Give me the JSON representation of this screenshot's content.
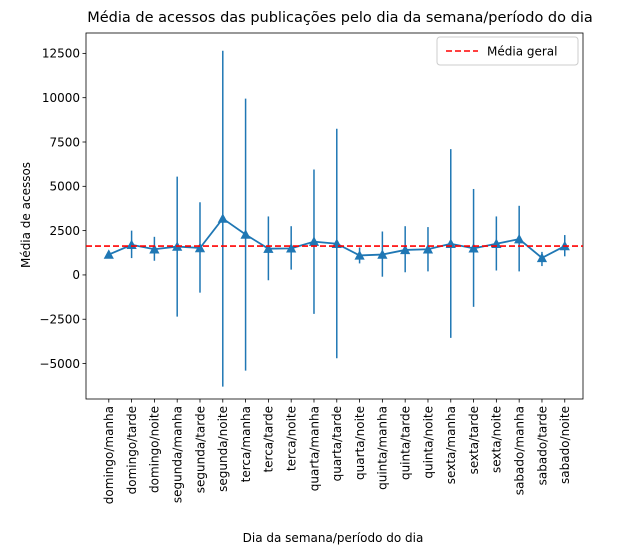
{
  "chart_data": {
    "type": "line",
    "title": "Média de acessos das publicações pelo dia da semana/período do dia",
    "xlabel": "Dia da semana/período do dia",
    "ylabel": "Média de acessos",
    "categories": [
      "domingo/manha",
      "domingo/tarde",
      "domingo/noite",
      "segunda/manha",
      "segunda/tarde",
      "segunda/noite",
      "terca/manha",
      "terca/tarde",
      "terca/noite",
      "quarta/manha",
      "quarta/tarde",
      "quarta/noite",
      "quinta/manha",
      "quinta/tarde",
      "quinta/noite",
      "sexta/manha",
      "sexta/tarde",
      "sexta/noite",
      "sabado/manha",
      "sabado/tarde",
      "sabado/noite"
    ],
    "series": [
      {
        "values": [
          1150,
          1700,
          1450,
          1600,
          1520,
          3180,
          2280,
          1480,
          1500,
          1880,
          1760,
          1100,
          1150,
          1410,
          1450,
          1760,
          1500,
          1760,
          2020,
          960,
          1630
        ],
        "error_low": [
          1000,
          950,
          800,
          -2350,
          -1000,
          -6300,
          -5400,
          -300,
          300,
          -2200,
          -4700,
          650,
          -100,
          150,
          200,
          -3550,
          -1800,
          250,
          200,
          500,
          1050
        ],
        "error_high": [
          1300,
          2500,
          2150,
          5550,
          4100,
          12650,
          9950,
          3300,
          2750,
          5950,
          8250,
          1550,
          2450,
          2750,
          2700,
          7100,
          4850,
          3300,
          3900,
          1300,
          2250
        ],
        "color": "#1f77b4",
        "marker": "triangle-up"
      }
    ],
    "reference_line": {
      "name": "Média geral",
      "value": 1630,
      "color": "#ff0000",
      "style": "dashed"
    },
    "yticks": [
      -5000,
      -2500,
      0,
      2500,
      5000,
      7500,
      10000,
      12500
    ],
    "ytick_labels": [
      "−5000",
      "−2500",
      "0",
      "2500",
      "5000",
      "7500",
      "10000",
      "12500"
    ],
    "ylim": [
      -7000,
      13650
    ],
    "grid": false,
    "legend_position": "top-right"
  }
}
